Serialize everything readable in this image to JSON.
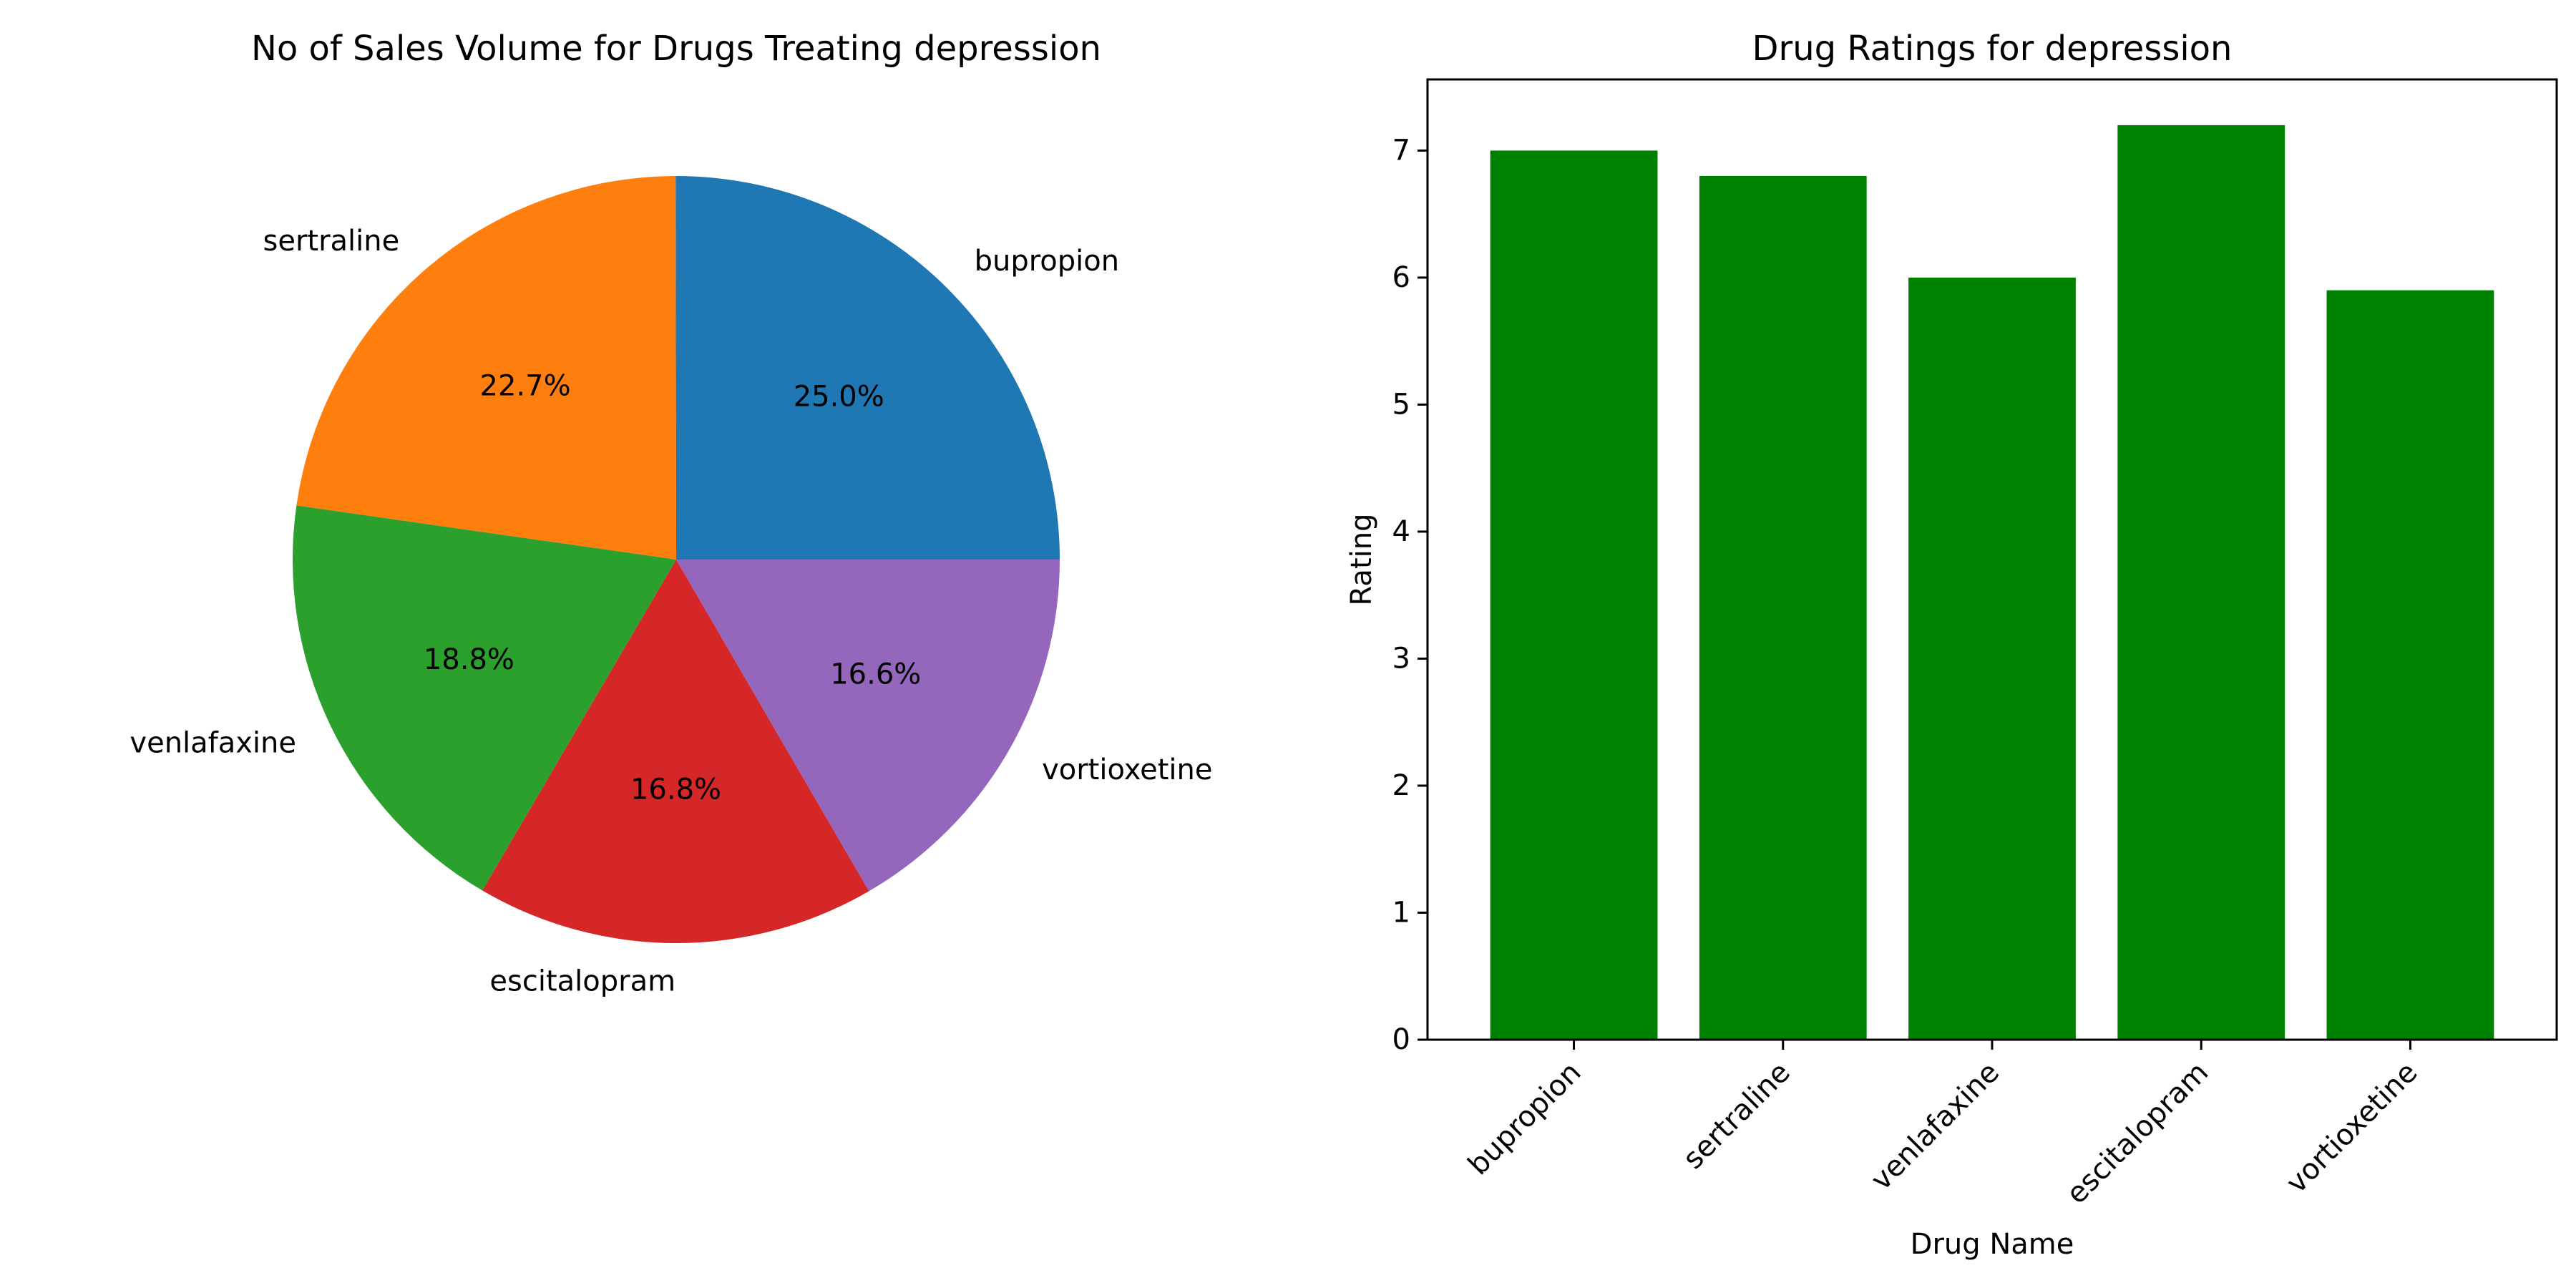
{
  "chart_data": [
    {
      "type": "pie",
      "title": "No of Sales Volume for Drugs Treating depression",
      "labels": [
        "bupropion",
        "sertraline",
        "venlafaxine",
        "escitalopram",
        "vortioxetine"
      ],
      "values": [
        25.0,
        22.7,
        18.8,
        16.8,
        16.6
      ],
      "pct_labels": [
        "25.0%",
        "22.7%",
        "18.8%",
        "16.8%",
        "16.6%"
      ],
      "colors": [
        "#1f77b4",
        "#ff7f0e",
        "#2ca02c",
        "#d62728",
        "#9467bd"
      ],
      "start_angle": 0,
      "direction": "counterclockwise"
    },
    {
      "type": "bar",
      "title": "Drug Ratings for depression",
      "categories": [
        "bupropion",
        "sertraline",
        "venlafaxine",
        "escitalopram",
        "vortioxetine"
      ],
      "values": [
        7.0,
        6.8,
        6.0,
        7.2,
        5.9
      ],
      "xlabel": "Drug Name",
      "ylabel": "Rating",
      "ylim": [
        0,
        7.56
      ],
      "yticks": [
        0,
        1,
        2,
        3,
        4,
        5,
        6,
        7
      ],
      "bar_color": "#008000",
      "grid": false
    }
  ]
}
